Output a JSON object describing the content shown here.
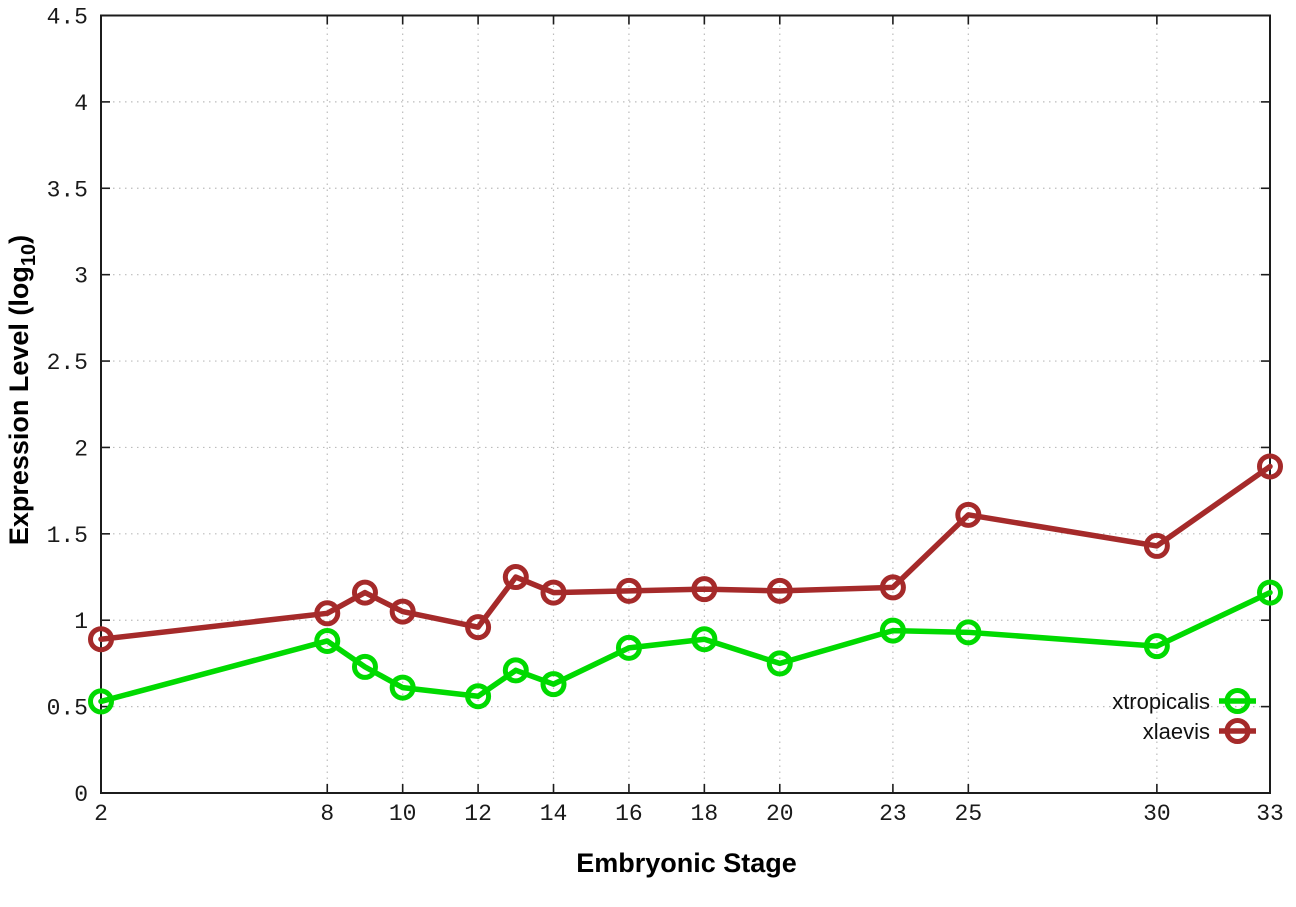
{
  "page": {
    "background": "#ffffff"
  },
  "chart_data": {
    "type": "line",
    "title": "",
    "xlabel": "Embryonic Stage",
    "ylabel_main": "Expression Level (log",
    "ylabel_sub": "10",
    "ylabel_suffix": ")",
    "x": [
      2,
      8,
      9,
      10,
      12,
      13,
      14,
      16,
      18,
      20,
      23,
      25,
      30,
      33
    ],
    "series": [
      {
        "name": "xtropicalis",
        "color": "#00da00",
        "values": [
          0.53,
          0.88,
          0.73,
          0.61,
          0.56,
          0.71,
          0.63,
          0.84,
          0.89,
          0.75,
          0.94,
          0.93,
          0.85,
          1.16
        ]
      },
      {
        "name": "xlaevis",
        "color": "#a52a2a",
        "values": [
          0.89,
          1.04,
          1.16,
          1.05,
          0.96,
          1.25,
          1.16,
          1.17,
          1.18,
          1.17,
          1.19,
          1.61,
          1.43,
          1.89
        ]
      }
    ],
    "xlim": [
      2,
      33
    ],
    "ylim": [
      0,
      4.5
    ],
    "xtick_values": [
      2,
      8,
      10,
      12,
      14,
      16,
      18,
      20,
      23,
      25,
      30,
      33
    ],
    "xtick_labels": [
      "2",
      "8",
      "10",
      "12",
      "14",
      "16",
      "18",
      "20",
      "23",
      "25",
      "30",
      "33"
    ],
    "ytick_values": [
      0,
      0.5,
      1,
      1.5,
      2,
      2.5,
      3,
      3.5,
      4,
      4.5
    ],
    "ytick_labels": [
      "0",
      "0.5",
      "1",
      "1.5",
      "2",
      "2.5",
      "3",
      "3.5",
      "4",
      "4.5"
    ],
    "grid": true,
    "legend": {
      "position": "inside-bottom-right",
      "entries": [
        "xtropicalis",
        "xlaevis"
      ]
    },
    "colors": {
      "border": "#1c1c1c",
      "grid": "#bcbcbc",
      "text": "#000000"
    }
  }
}
